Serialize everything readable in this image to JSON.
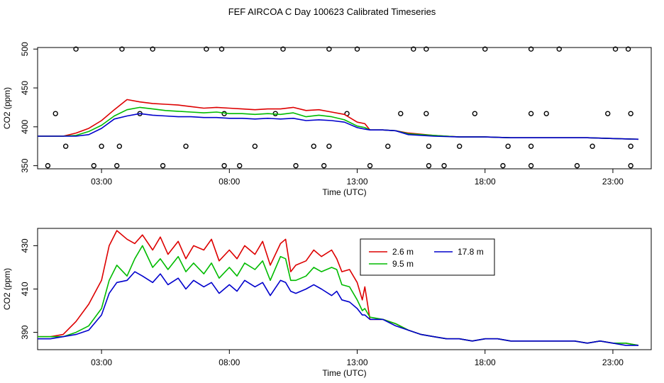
{
  "figure": {
    "title": "FEF AIRCOA C  Day 100623  Calibrated Timeseries"
  },
  "chart_data": [
    {
      "type": "scatter+line",
      "title": "",
      "xlabel": "Time (UTC)",
      "ylabel": "CO2 (ppm)",
      "xlim": [
        0.5,
        24.5
      ],
      "ylim": [
        346,
        502
      ],
      "xticks": [
        3,
        8,
        13,
        18,
        23
      ],
      "xtick_labels": [
        "03:00",
        "08:00",
        "13:00",
        "18:00",
        "23:00"
      ],
      "yticks": [
        350,
        400,
        450,
        500
      ],
      "ytick_labels": [
        "350",
        "400",
        "450",
        "500"
      ],
      "flags": {
        "name": "flagged points",
        "x": [
          2.0,
          3.8,
          5.0,
          7.1,
          7.7,
          10.1,
          11.9,
          13.0,
          15.2,
          15.7,
          18.0,
          19.8,
          20.9,
          23.1,
          23.6,
          1.2,
          4.5,
          7.8,
          9.8,
          12.6,
          14.7,
          15.7,
          17.6,
          19.8,
          20.4,
          22.8,
          23.7,
          1.6,
          3.0,
          3.7,
          6.3,
          9.0,
          11.3,
          11.9,
          14.2,
          15.8,
          17.0,
          18.9,
          19.8,
          22.2,
          23.7,
          0.9,
          2.7,
          3.6,
          5.4,
          7.8,
          8.4,
          10.6,
          11.7,
          13.5,
          15.8,
          16.4,
          18.7,
          19.8,
          21.6,
          23.7
        ],
        "y": [
          500,
          500,
          500,
          500,
          500,
          500,
          500,
          500,
          500,
          500,
          500,
          500,
          500,
          500,
          500,
          417,
          417,
          417,
          417,
          417,
          417,
          417,
          417,
          417,
          417,
          417,
          417,
          375,
          375,
          375,
          375,
          375,
          375,
          375,
          375,
          375,
          375,
          375,
          375,
          375,
          375,
          350,
          350,
          350,
          350,
          350,
          350,
          350,
          350,
          350,
          350,
          350,
          350,
          350,
          350,
          350
        ]
      },
      "series": [
        {
          "name": "2.6 m",
          "color": "#dd0000",
          "x": [
            0.5,
            1.0,
            1.5,
            2.0,
            2.5,
            3.0,
            3.5,
            4.0,
            4.5,
            5.0,
            5.5,
            6.0,
            6.5,
            7.0,
            7.5,
            8.0,
            8.5,
            9.0,
            9.5,
            10.0,
            10.5,
            11.0,
            11.5,
            12.0,
            12.5,
            13.0,
            13.3,
            13.5,
            14.0,
            14.5,
            15.0,
            16.0,
            17.0,
            18.0,
            19.0,
            20.0,
            21.0,
            22.0,
            23.0,
            24.0
          ],
          "values": [
            388,
            388,
            388,
            392,
            398,
            408,
            422,
            435,
            432,
            430,
            429,
            428,
            426,
            424,
            425,
            424,
            423,
            422,
            423,
            423,
            425,
            421,
            422,
            419,
            416,
            406,
            404,
            396,
            396,
            395,
            392,
            389,
            387,
            387,
            386,
            386,
            386,
            386,
            385,
            384
          ]
        },
        {
          "name": "9.5 m",
          "color": "#00bb00",
          "x": [
            0.5,
            1.0,
            1.5,
            2.0,
            2.5,
            3.0,
            3.5,
            4.0,
            4.5,
            5.0,
            5.5,
            6.0,
            6.5,
            7.0,
            7.5,
            8.0,
            8.5,
            9.0,
            9.5,
            10.0,
            10.5,
            11.0,
            11.5,
            12.0,
            12.5,
            13.0,
            13.3,
            13.5,
            14.0,
            14.5,
            15.0,
            16.0,
            17.0,
            18.0,
            19.0,
            20.0,
            21.0,
            22.0,
            23.0,
            24.0
          ],
          "values": [
            388,
            388,
            388,
            389,
            394,
            402,
            414,
            422,
            425,
            423,
            421,
            420,
            419,
            418,
            419,
            417,
            417,
            416,
            417,
            416,
            418,
            413,
            415,
            413,
            409,
            401,
            399,
            396,
            396,
            395,
            391,
            389,
            387,
            387,
            386,
            386,
            386,
            386,
            385,
            384
          ]
        },
        {
          "name": "17.8 m",
          "color": "#0000cc",
          "x": [
            0.5,
            1.0,
            1.5,
            2.0,
            2.5,
            3.0,
            3.5,
            4.0,
            4.5,
            5.0,
            5.5,
            6.0,
            6.5,
            7.0,
            7.5,
            8.0,
            8.5,
            9.0,
            9.5,
            10.0,
            10.5,
            11.0,
            11.5,
            12.0,
            12.5,
            13.0,
            13.3,
            13.5,
            14.0,
            14.5,
            15.0,
            16.0,
            17.0,
            18.0,
            19.0,
            20.0,
            21.0,
            22.0,
            23.0,
            24.0
          ],
          "values": [
            388,
            388,
            388,
            388,
            390,
            398,
            410,
            414,
            417,
            415,
            414,
            413,
            413,
            412,
            412,
            411,
            411,
            410,
            411,
            410,
            411,
            408,
            409,
            408,
            406,
            399,
            397,
            396,
            396,
            395,
            390,
            388,
            387,
            387,
            386,
            386,
            386,
            386,
            385,
            384
          ]
        }
      ]
    },
    {
      "type": "line",
      "title": "",
      "xlabel": "Time (UTC)",
      "ylabel": "CO2 (ppm)",
      "xlim": [
        0.5,
        24.5
      ],
      "ylim": [
        382,
        438
      ],
      "xticks": [
        3,
        8,
        13,
        18,
        23
      ],
      "xtick_labels": [
        "03:00",
        "08:00",
        "13:00",
        "18:00",
        "23:00"
      ],
      "yticks": [
        390,
        410,
        430
      ],
      "ytick_labels": [
        "390",
        "410",
        "430"
      ],
      "legend": {
        "position": "top-center"
      },
      "series": [
        {
          "name": "2.6 m",
          "color": "#dd0000",
          "x": [
            0.5,
            1.0,
            1.5,
            2.0,
            2.5,
            3.0,
            3.3,
            3.6,
            4.0,
            4.3,
            4.6,
            5.0,
            5.3,
            5.6,
            6.0,
            6.3,
            6.6,
            7.0,
            7.3,
            7.6,
            8.0,
            8.3,
            8.6,
            9.0,
            9.3,
            9.6,
            10.0,
            10.2,
            10.4,
            10.6,
            11.0,
            11.3,
            11.6,
            12.0,
            12.2,
            12.4,
            12.7,
            13.0,
            13.2,
            13.3,
            13.5,
            14.0,
            14.5,
            15.0,
            15.5,
            16.0,
            16.5,
            17.0,
            17.5,
            18.0,
            18.5,
            19.0,
            19.5,
            20.0,
            20.5,
            21.0,
            21.5,
            22.0,
            22.5,
            23.0,
            23.5,
            24.0
          ],
          "values": [
            388,
            388,
            389,
            395,
            403,
            414,
            430,
            437,
            433,
            431,
            435,
            428,
            434,
            426,
            432,
            424,
            430,
            428,
            433,
            423,
            428,
            424,
            430,
            426,
            432,
            421,
            431,
            433,
            418,
            421,
            423,
            428,
            425,
            428,
            424,
            418,
            419,
            413,
            405,
            411,
            396,
            396,
            394,
            391,
            389,
            388,
            387,
            387,
            386,
            387,
            387,
            386,
            386,
            386,
            386,
            386,
            386,
            385,
            386,
            385,
            385,
            384
          ]
        },
        {
          "name": "9.5 m",
          "color": "#00bb00",
          "x": [
            0.5,
            1.0,
            1.5,
            2.0,
            2.5,
            3.0,
            3.3,
            3.6,
            4.0,
            4.3,
            4.6,
            5.0,
            5.3,
            5.6,
            6.0,
            6.3,
            6.6,
            7.0,
            7.3,
            7.6,
            8.0,
            8.3,
            8.6,
            9.0,
            9.3,
            9.6,
            10.0,
            10.2,
            10.4,
            10.6,
            11.0,
            11.3,
            11.6,
            12.0,
            12.2,
            12.4,
            12.7,
            13.0,
            13.2,
            13.3,
            13.5,
            14.0,
            14.5,
            15.0,
            15.5,
            16.0,
            16.5,
            17.0,
            17.5,
            18.0,
            18.5,
            19.0,
            19.5,
            20.0,
            20.5,
            21.0,
            21.5,
            22.0,
            22.5,
            23.0,
            23.5,
            24.0
          ],
          "values": [
            388,
            388,
            388,
            390,
            393,
            401,
            414,
            421,
            416,
            424,
            430,
            420,
            424,
            419,
            425,
            418,
            422,
            417,
            422,
            415,
            420,
            416,
            422,
            419,
            423,
            414,
            425,
            424,
            414,
            414,
            416,
            420,
            418,
            420,
            419,
            412,
            411,
            405,
            400,
            401,
            397,
            396,
            394,
            391,
            389,
            388,
            387,
            387,
            386,
            387,
            387,
            386,
            386,
            386,
            386,
            386,
            386,
            385,
            386,
            385,
            385,
            384
          ]
        },
        {
          "name": "17.8 m",
          "color": "#0000cc",
          "x": [
            0.5,
            1.0,
            1.5,
            2.0,
            2.5,
            3.0,
            3.3,
            3.6,
            4.0,
            4.3,
            4.6,
            5.0,
            5.3,
            5.6,
            6.0,
            6.3,
            6.6,
            7.0,
            7.3,
            7.6,
            8.0,
            8.3,
            8.6,
            9.0,
            9.3,
            9.6,
            10.0,
            10.2,
            10.4,
            10.6,
            11.0,
            11.3,
            11.6,
            12.0,
            12.2,
            12.4,
            12.7,
            13.0,
            13.2,
            13.3,
            13.5,
            14.0,
            14.5,
            15.0,
            15.5,
            16.0,
            16.5,
            17.0,
            17.5,
            18.0,
            18.5,
            19.0,
            19.5,
            20.0,
            20.5,
            21.0,
            21.5,
            22.0,
            22.5,
            23.0,
            23.5,
            24.0
          ],
          "values": [
            387,
            387,
            388,
            389,
            391,
            398,
            408,
            413,
            414,
            418,
            416,
            413,
            417,
            412,
            415,
            410,
            414,
            411,
            413,
            408,
            412,
            409,
            414,
            411,
            413,
            407,
            414,
            413,
            409,
            408,
            410,
            412,
            410,
            407,
            409,
            405,
            404,
            401,
            398,
            398,
            396,
            396,
            393,
            391,
            389,
            388,
            387,
            387,
            386,
            387,
            387,
            386,
            386,
            386,
            386,
            386,
            386,
            385,
            386,
            385,
            384,
            384
          ]
        }
      ]
    }
  ]
}
